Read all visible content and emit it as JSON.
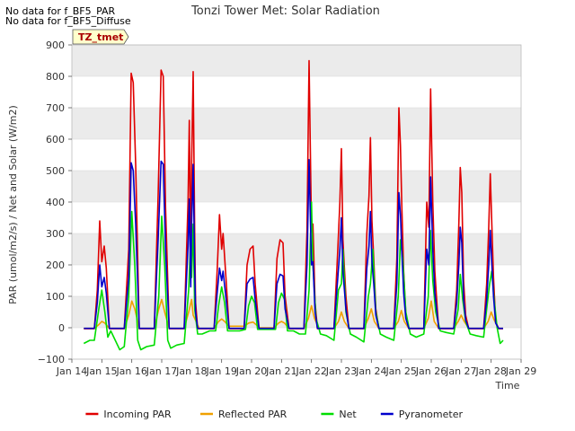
{
  "notes": [
    "No data for f_BF5_PAR",
    "No data for f_BF5_Diffuse"
  ],
  "site_label": "TZ_tmet",
  "chart_data": {
    "type": "line",
    "title": "Tonzi Tower Met: Solar Radiation",
    "xlabel": "Time",
    "ylabel": "PAR (umol/m2/s) / Net and Solar (W/m2)",
    "xlim": [
      14,
      29
    ],
    "ylim": [
      -100,
      900
    ],
    "x_ticks": [
      14,
      15,
      16,
      17,
      18,
      19,
      20,
      21,
      22,
      23,
      24,
      25,
      26,
      27,
      28,
      29
    ],
    "x_tick_labels": [
      "Jan 14",
      "Jan 15",
      "Jan 16",
      "Jan 17",
      "Jan 18",
      "Jan 19",
      "Jan 20",
      "Jan 21",
      "Jan 22",
      "Jan 23",
      "Jan 24",
      "Jan 25",
      "Jan 26",
      "Jan 27",
      "Jan 28",
      "Jan 29"
    ],
    "y_ticks": [
      -100,
      0,
      100,
      200,
      300,
      400,
      500,
      600,
      700,
      800,
      900
    ],
    "y_tick_labels": [
      "−100",
      "0",
      "100",
      "200",
      "300",
      "400",
      "500",
      "600",
      "700",
      "800",
      "900"
    ],
    "legend_position": "bottom",
    "series": [
      {
        "name": "Incoming PAR",
        "color": "#e00000",
        "x": [
          14.4,
          14.75,
          14.85,
          14.93,
          15.0,
          15.08,
          15.15,
          15.25,
          15.5,
          15.75,
          15.9,
          15.98,
          16.05,
          16.13,
          16.25,
          16.5,
          16.75,
          16.88,
          16.98,
          17.05,
          17.13,
          17.25,
          17.5,
          17.75,
          17.88,
          17.92,
          17.97,
          18.0,
          18.05,
          18.1,
          18.13,
          18.2,
          18.25,
          18.5,
          18.75,
          18.85,
          18.93,
          19.0,
          19.05,
          19.15,
          19.25,
          19.5,
          19.75,
          19.85,
          19.95,
          20.05,
          20.12,
          20.25,
          20.5,
          20.75,
          20.85,
          20.95,
          21.05,
          21.12,
          21.25,
          21.5,
          21.75,
          21.85,
          21.92,
          22.0,
          22.05,
          22.12,
          22.2,
          22.25,
          22.5,
          22.75,
          22.88,
          22.95,
          23.0,
          23.05,
          23.15,
          23.25,
          23.5,
          23.75,
          23.85,
          23.92,
          23.97,
          24.02,
          24.08,
          24.15,
          24.25,
          24.5,
          24.75,
          24.85,
          24.92,
          24.97,
          25.02,
          25.08,
          25.15,
          25.25,
          25.5,
          25.75,
          25.85,
          25.92,
          25.98,
          26.05,
          26.12,
          26.2,
          26.25,
          26.5,
          26.75,
          26.85,
          26.92,
          26.97,
          27.02,
          27.08,
          27.15,
          27.25,
          27.5,
          27.75,
          27.85,
          27.92,
          27.97,
          28.02,
          28.08,
          28.15,
          28.25,
          28.4
        ],
        "y": [
          -3,
          -3,
          120,
          340,
          210,
          260,
          190,
          -3,
          -3,
          -3,
          250,
          810,
          780,
          520,
          -3,
          -3,
          -3,
          420,
          820,
          800,
          380,
          -3,
          -3,
          -3,
          400,
          660,
          200,
          520,
          815,
          300,
          80,
          -3,
          -3,
          -3,
          -3,
          180,
          360,
          250,
          300,
          150,
          -3,
          -3,
          -3,
          200,
          250,
          260,
          140,
          -3,
          -3,
          -3,
          220,
          280,
          270,
          100,
          -3,
          -3,
          -3,
          310,
          850,
          310,
          330,
          80,
          -3,
          -3,
          -3,
          -3,
          250,
          400,
          570,
          280,
          100,
          -3,
          -3,
          -3,
          300,
          420,
          605,
          340,
          220,
          60,
          -3,
          -3,
          -3,
          220,
          700,
          580,
          380,
          180,
          40,
          -3,
          -3,
          -3,
          400,
          320,
          760,
          400,
          180,
          60,
          -3,
          -3,
          -3,
          120,
          330,
          510,
          430,
          150,
          40,
          -3,
          -3,
          -3,
          140,
          320,
          490,
          340,
          160,
          20,
          -3,
          -3
        ]
      },
      {
        "name": "Reflected PAR",
        "color": "#f0a000",
        "x": [
          14.4,
          14.75,
          14.9,
          15.0,
          15.1,
          15.25,
          15.75,
          15.9,
          16.0,
          16.1,
          16.25,
          16.75,
          16.9,
          17.0,
          17.1,
          17.25,
          17.75,
          17.9,
          18.0,
          18.05,
          18.15,
          18.25,
          18.75,
          18.9,
          19.0,
          19.1,
          19.25,
          19.75,
          19.9,
          20.05,
          20.15,
          20.25,
          20.75,
          20.9,
          21.0,
          21.1,
          21.25,
          21.75,
          21.9,
          22.0,
          22.1,
          22.25,
          22.75,
          22.9,
          23.0,
          23.1,
          23.25,
          23.75,
          23.9,
          24.0,
          24.1,
          24.25,
          24.75,
          24.9,
          25.0,
          25.1,
          25.25,
          25.75,
          25.9,
          26.0,
          26.1,
          26.25,
          26.75,
          26.9,
          27.0,
          27.1,
          27.25,
          27.75,
          27.9,
          28.0,
          28.1,
          28.25,
          28.4
        ],
        "y": [
          -2,
          -2,
          10,
          20,
          15,
          -2,
          -2,
          40,
          85,
          60,
          -2,
          -2,
          60,
          90,
          50,
          -2,
          -2,
          50,
          90,
          40,
          20,
          -2,
          -2,
          20,
          28,
          20,
          5,
          5,
          15,
          18,
          10,
          0,
          0,
          15,
          20,
          15,
          -2,
          -2,
          30,
          70,
          30,
          -2,
          -2,
          20,
          50,
          20,
          -2,
          -2,
          30,
          60,
          20,
          -2,
          -2,
          20,
          55,
          20,
          -2,
          -2,
          30,
          85,
          20,
          -2,
          -2,
          20,
          40,
          20,
          -2,
          -2,
          20,
          50,
          25,
          -2,
          -2
        ]
      },
      {
        "name": "Net",
        "color": "#00dd00",
        "x": [
          14.4,
          14.6,
          14.75,
          14.9,
          15.0,
          15.1,
          15.2,
          15.3,
          15.45,
          15.6,
          15.75,
          15.9,
          16.0,
          16.1,
          16.2,
          16.3,
          16.5,
          16.75,
          16.9,
          17.0,
          17.1,
          17.2,
          17.3,
          17.5,
          17.75,
          17.9,
          17.97,
          18.0,
          18.05,
          18.1,
          18.2,
          18.35,
          18.6,
          18.8,
          18.9,
          19.0,
          19.1,
          19.2,
          19.4,
          19.6,
          19.8,
          19.9,
          20.0,
          20.1,
          20.2,
          20.4,
          20.6,
          20.8,
          20.9,
          21.0,
          21.1,
          21.2,
          21.4,
          21.6,
          21.8,
          21.92,
          22.0,
          22.05,
          22.15,
          22.3,
          22.5,
          22.75,
          22.9,
          23.0,
          23.05,
          23.15,
          23.3,
          23.5,
          23.75,
          23.9,
          23.97,
          24.05,
          24.15,
          24.3,
          24.5,
          24.75,
          24.9,
          24.97,
          25.05,
          25.15,
          25.3,
          25.5,
          25.75,
          25.9,
          25.97,
          26.05,
          26.15,
          26.3,
          26.5,
          26.75,
          26.9,
          26.97,
          27.05,
          27.15,
          27.3,
          27.5,
          27.75,
          27.85,
          27.95,
          28.02,
          28.1,
          28.2,
          28.3,
          28.4
        ],
        "y": [
          -50,
          -40,
          -40,
          60,
          120,
          50,
          -30,
          -10,
          -40,
          -70,
          -60,
          100,
          370,
          200,
          -40,
          -70,
          -60,
          -55,
          100,
          355,
          200,
          -40,
          -65,
          -55,
          -50,
          120,
          280,
          160,
          330,
          60,
          -20,
          -20,
          -10,
          -10,
          70,
          130,
          80,
          -10,
          -10,
          -10,
          -5,
          70,
          100,
          80,
          -5,
          -5,
          -5,
          -5,
          80,
          110,
          90,
          -10,
          -10,
          -20,
          -20,
          120,
          400,
          200,
          30,
          -20,
          -25,
          -40,
          120,
          140,
          250,
          50,
          -20,
          -30,
          -45,
          100,
          140,
          250,
          50,
          -20,
          -30,
          -40,
          100,
          280,
          220,
          50,
          -20,
          -30,
          -20,
          100,
          310,
          150,
          50,
          -10,
          -15,
          -20,
          60,
          170,
          90,
          20,
          -20,
          -25,
          -30,
          60,
          140,
          180,
          90,
          0,
          -50,
          -40
        ]
      },
      {
        "name": "Pyranometer",
        "color": "#0000cc",
        "x": [
          14.4,
          14.75,
          14.85,
          14.93,
          15.0,
          15.08,
          15.15,
          15.25,
          15.5,
          15.75,
          15.9,
          15.98,
          16.05,
          16.13,
          16.25,
          16.5,
          16.75,
          16.88,
          16.98,
          17.05,
          17.13,
          17.25,
          17.5,
          17.75,
          17.88,
          17.92,
          17.97,
          18.0,
          18.05,
          18.1,
          18.13,
          18.2,
          18.25,
          18.5,
          18.75,
          18.85,
          18.93,
          19.0,
          19.05,
          19.15,
          19.25,
          19.5,
          19.75,
          19.85,
          19.95,
          20.05,
          20.12,
          20.25,
          20.5,
          20.75,
          20.85,
          20.95,
          21.05,
          21.12,
          21.25,
          21.5,
          21.75,
          21.85,
          21.92,
          22.0,
          22.05,
          22.12,
          22.2,
          22.25,
          22.5,
          22.75,
          22.88,
          22.95,
          23.0,
          23.05,
          23.15,
          23.25,
          23.5,
          23.75,
          23.85,
          23.92,
          23.97,
          24.02,
          24.08,
          24.15,
          24.25,
          24.5,
          24.75,
          24.85,
          24.92,
          24.97,
          25.02,
          25.08,
          25.15,
          25.25,
          25.5,
          25.75,
          25.85,
          25.92,
          25.98,
          26.05,
          26.12,
          26.2,
          26.25,
          26.5,
          26.75,
          26.85,
          26.92,
          26.97,
          27.02,
          27.08,
          27.15,
          27.25,
          27.5,
          27.75,
          27.85,
          27.92,
          27.97,
          28.02,
          28.08,
          28.15,
          28.25,
          28.4
        ],
        "y": [
          -2,
          -2,
          80,
          200,
          130,
          160,
          110,
          -2,
          -2,
          -2,
          160,
          525,
          500,
          330,
          -2,
          -2,
          -2,
          280,
          530,
          520,
          250,
          -2,
          -2,
          -2,
          260,
          410,
          130,
          330,
          520,
          190,
          50,
          -2,
          -2,
          -2,
          -2,
          110,
          190,
          150,
          180,
          90,
          -2,
          -2,
          -2,
          140,
          155,
          160,
          90,
          -2,
          -2,
          -2,
          140,
          170,
          165,
          60,
          -2,
          -2,
          -2,
          200,
          535,
          200,
          210,
          50,
          -2,
          -2,
          -2,
          -2,
          160,
          250,
          350,
          180,
          60,
          -2,
          -2,
          -2,
          190,
          260,
          370,
          210,
          140,
          40,
          -2,
          -2,
          -2,
          140,
          430,
          360,
          240,
          110,
          30,
          -2,
          -2,
          -2,
          250,
          200,
          480,
          250,
          110,
          40,
          -2,
          -2,
          -2,
          80,
          200,
          320,
          270,
          90,
          25,
          -2,
          -2,
          -2,
          90,
          200,
          310,
          210,
          100,
          15,
          -2,
          -2
        ]
      }
    ]
  }
}
